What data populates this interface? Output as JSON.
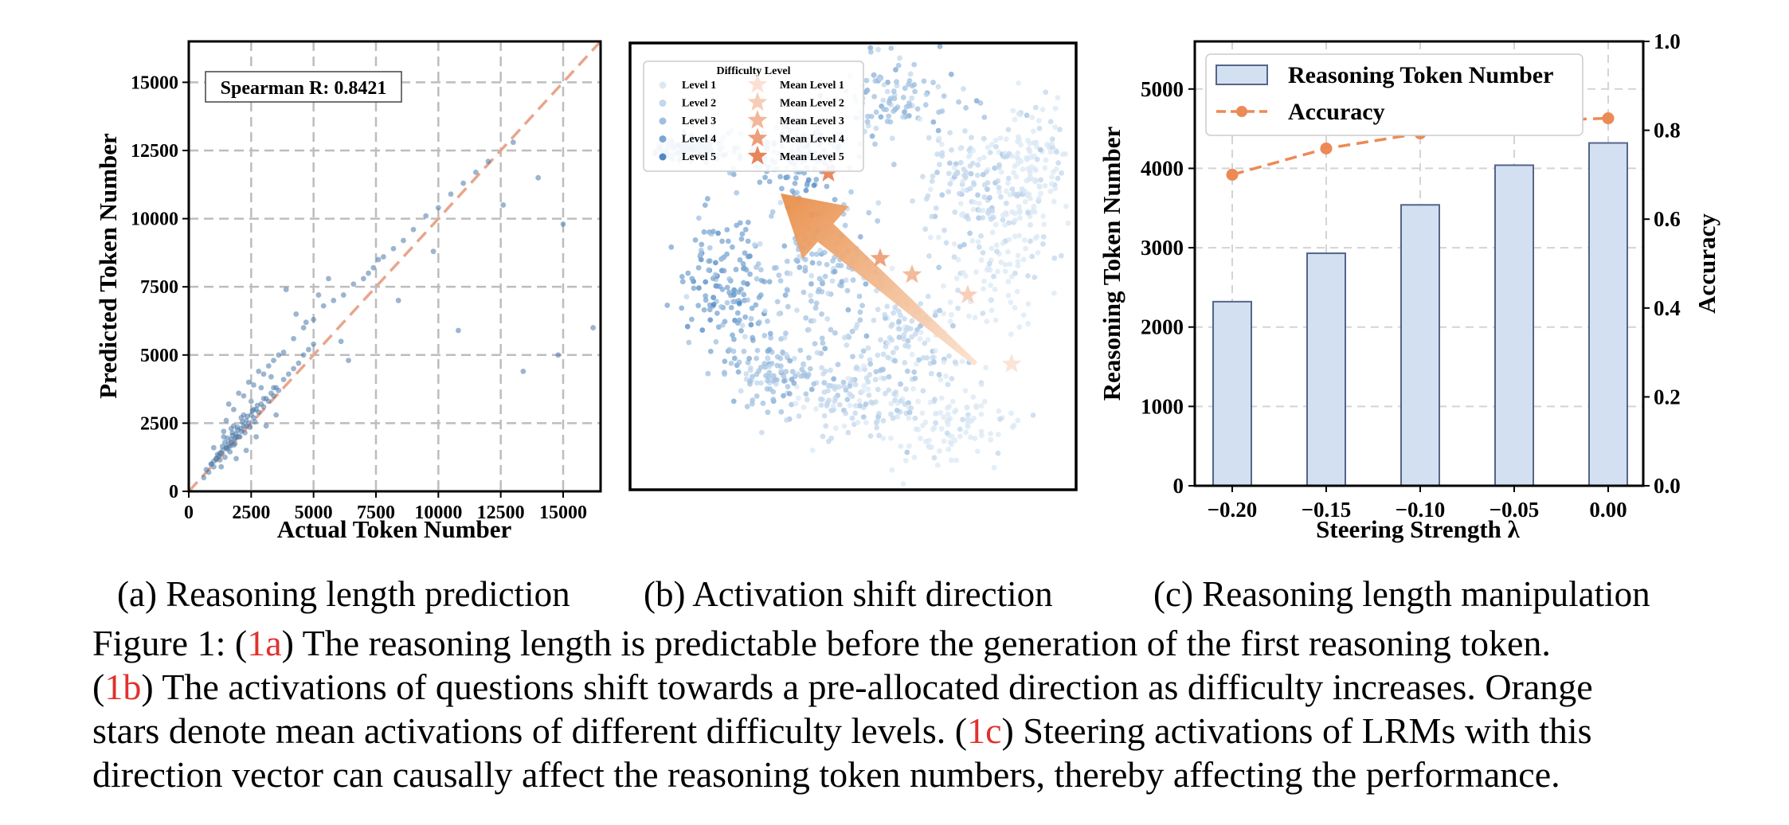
{
  "chart_data": [
    {
      "type": "scatter",
      "xlabel": "Actual Token Number",
      "ylabel": "Predicted Token Number",
      "xlim": [
        0,
        16500
      ],
      "ylim": [
        0,
        16500
      ],
      "xticks": [
        "0",
        "2500",
        "5000",
        "7500",
        "10000",
        "12500",
        "15000"
      ],
      "yticks": [
        "0",
        "2500",
        "5000",
        "7500",
        "10000",
        "12500",
        "15000"
      ],
      "grid": true,
      "annotation": "Spearman R: 0.8421",
      "reference_line": {
        "x": [
          0,
          16500
        ],
        "y": [
          0,
          16500
        ]
      },
      "color": "#4a78a8",
      "line_color": "#e8a68c",
      "points": {
        "x": [
          1200,
          1350,
          1500,
          1600,
          1700,
          1800,
          1900,
          2000,
          1100,
          1000,
          1250,
          1450,
          1550,
          1650,
          1750,
          1850,
          1950,
          2100,
          2200,
          2300,
          2400,
          2500,
          2600,
          2700,
          2800,
          2900,
          3000,
          3100,
          3200,
          3300,
          3400,
          3500,
          3600,
          3800,
          4000,
          4200,
          4400,
          4600,
          4800,
          5000,
          1400,
          1300,
          1700,
          1900,
          2100,
          2300,
          2500,
          2700,
          2900,
          3100,
          3300,
          3500,
          800,
          900,
          1000,
          1150,
          1250,
          1350,
          1450,
          1550,
          1650,
          1750,
          1850,
          1950,
          2050,
          2150,
          2250,
          2350,
          2450,
          2550,
          2650,
          2750,
          1500,
          1800,
          2200,
          2600,
          3000,
          3400,
          3800,
          4200,
          4600,
          5000,
          5400,
          5800,
          6200,
          6600,
          7000,
          7400,
          7800,
          8200,
          8600,
          9000,
          9500,
          10000,
          10500,
          11000,
          11500,
          12000,
          13000,
          14000,
          15000,
          16200,
          4300,
          5200,
          6100,
          7200,
          8400,
          9800,
          10800,
          12600,
          13400,
          14800,
          3900,
          4700,
          5600,
          6400,
          7600,
          1600,
          2000,
          2400,
          2800,
          3200,
          3600,
          1000,
          1400,
          1800,
          2200,
          2600,
          3000,
          3400,
          600,
          700,
          900,
          1100,
          1300,
          1500,
          1700,
          1900,
          2100,
          2300
        ],
        "y": [
          1300,
          1500,
          1600,
          1750,
          1900,
          1700,
          2100,
          2000,
          1200,
          1100,
          1400,
          1800,
          1550,
          1650,
          2050,
          1950,
          2250,
          2300,
          2400,
          2600,
          2500,
          2800,
          2700,
          3000,
          2900,
          3200,
          3100,
          3400,
          3300,
          3600,
          3500,
          3800,
          3700,
          4100,
          4300,
          4500,
          4700,
          5000,
          5200,
          5400,
          2200,
          900,
          2300,
          1200,
          2700,
          1500,
          3300,
          2000,
          3800,
          2400,
          4200,
          2800,
          700,
          1000,
          900,
          1350,
          1150,
          1650,
          1250,
          1950,
          1450,
          2150,
          1750,
          2350,
          2000,
          2550,
          2150,
          2750,
          2350,
          2950,
          2550,
          3150,
          2600,
          3000,
          3500,
          3900,
          4300,
          4800,
          5100,
          5600,
          6000,
          6300,
          6800,
          7000,
          7200,
          7600,
          7800,
          8200,
          8600,
          8900,
          9200,
          9600,
          10100,
          10400,
          10900,
          11300,
          11700,
          12100,
          12800,
          11500,
          9800,
          6000,
          6500,
          7200,
          5500,
          8000,
          7000,
          8800,
          5900,
          10500,
          4400,
          5000,
          7400,
          6200,
          7800,
          4800,
          8500,
          3200,
          3600,
          4000,
          4400,
          4600,
          5000,
          1600,
          2000,
          2400,
          2800,
          3000,
          3400,
          3800,
          500,
          800,
          1000,
          1200,
          1400,
          1600,
          1800,
          2000,
          2200,
          2400
        ]
      }
    },
    {
      "type": "scatter",
      "legend_title": "Difficulty Level",
      "legend_entries": [
        "Level 1",
        "Level 2",
        "Level 3",
        "Level 4",
        "Level 5"
      ],
      "legend_mean_entries": [
        "Mean Level 1",
        "Mean Level 2",
        "Mean Level 3",
        "Mean Level 4",
        "Mean Level 5"
      ],
      "legend_placement": "top-left",
      "level_colors": [
        "#dbe8f4",
        "#c2d7ec",
        "#a0c0e0",
        "#7aa6d2",
        "#4f88c2"
      ],
      "mean_colors": [
        "#fbe1d4",
        "#f7cdb8",
        "#f3b698",
        "#ee9e78",
        "#e8845a"
      ],
      "means": [
        {
          "level": 1,
          "x": 0.8,
          "y": -0.42
        },
        {
          "level": 2,
          "x": 0.58,
          "y": -0.08
        },
        {
          "level": 3,
          "x": 0.3,
          "y": 0.02
        },
        {
          "level": 4,
          "x": 0.14,
          "y": 0.1
        },
        {
          "level": 5,
          "x": -0.12,
          "y": 0.52
        }
      ],
      "arrow": {
        "from": [
          0.62,
          -0.42
        ],
        "to": [
          -0.36,
          0.42
        ],
        "color": "#e8934f"
      }
    },
    {
      "type": "bar",
      "categories": [
        "−0.20",
        "−0.15",
        "−0.10",
        "−0.05",
        "0.00"
      ],
      "xlabel": "Steering Strength λ",
      "ylabel": "Reasoning Token Number",
      "ylim": [
        0,
        5600
      ],
      "yticks": [
        "0",
        "1000",
        "2000",
        "3000",
        "4000",
        "5000"
      ],
      "y2label": "Accuracy",
      "y2lim": [
        0,
        1
      ],
      "y2ticks": [
        "0.0",
        "0.2",
        "0.4",
        "0.6",
        "0.8",
        "1.0"
      ],
      "grid": true,
      "legend_placement": "top-left",
      "series": [
        {
          "name": "Reasoning Token Number",
          "kind": "bar",
          "axis": "left",
          "values": [
            2320,
            2930,
            3540,
            4040,
            4320
          ],
          "color": "#d2e0f1",
          "edge": "#55658a"
        },
        {
          "name": "Accuracy",
          "kind": "line",
          "axis": "right",
          "values": [
            0.7,
            0.759,
            0.793,
            0.82,
            0.827
          ],
          "color": "#ec8a56"
        }
      ]
    }
  ],
  "subcaptions": {
    "a": "(a) Reasoning length prediction",
    "b": "(b) Activation shift direction",
    "c": "(c) Reasoning length manipulation"
  },
  "caption": {
    "figure_label": "Figure 1:",
    "ref_a": "1a",
    "text_a": " The reasoning length is predictable before the generation of the first reasoning token.",
    "ref_b": "1b",
    "text_b1": " The activations of questions shift towards a pre-allocated direction as difficulty increases. Orange",
    "text_b2": "stars denote mean activations of different difficulty levels.",
    "ref_c": "1c",
    "text_c1": " Steering activations of LRMs with this",
    "text_c2": "direction vector can causally affect the reasoning token numbers, thereby affecting the performance."
  }
}
